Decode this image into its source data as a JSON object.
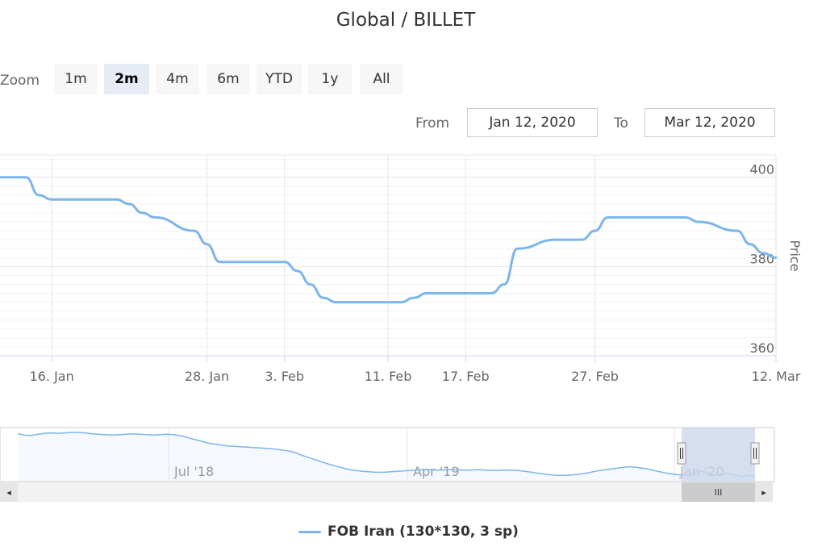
{
  "title": "Global / BILLET",
  "range_selector": {
    "zoom_label": "Zoom",
    "buttons": [
      "1m",
      "2m",
      "4m",
      "6m",
      "YTD",
      "1y",
      "All"
    ],
    "active": "2m",
    "from_label": "From",
    "from_value": "Jan 12, 2020",
    "to_label": "To",
    "to_value": "Mar 12, 2020"
  },
  "colors": {
    "series": "#7cb5ec",
    "navigator_mask": "#ccd6eb",
    "grid": "#e6e6e6"
  },
  "chart_data": {
    "type": "line",
    "title": "Global / BILLET",
    "xlabel": "",
    "ylabel": "Price",
    "x_range": [
      "Jan 12, 2020",
      "Mar 12, 2020"
    ],
    "ylim": [
      360,
      405
    ],
    "y_ticks": [
      360,
      380,
      400
    ],
    "x_ticks": [
      "16. Jan",
      "28. Jan",
      "3. Feb",
      "11. Feb",
      "17. Feb",
      "27. Feb",
      "12. Mar"
    ],
    "grid": true,
    "legend": "bottom-center",
    "series": [
      {
        "name": "FOB Iran (130*130, 3 sp)",
        "x": [
          "2020-01-12",
          "2020-01-13",
          "2020-01-14",
          "2020-01-15",
          "2020-01-16",
          "2020-01-17",
          "2020-01-20",
          "2020-01-21",
          "2020-01-22",
          "2020-01-23",
          "2020-01-24",
          "2020-01-27",
          "2020-01-28",
          "2020-01-29",
          "2020-01-30",
          "2020-01-31",
          "2020-02-03",
          "2020-02-04",
          "2020-02-05",
          "2020-02-06",
          "2020-02-07",
          "2020-02-10",
          "2020-02-11",
          "2020-02-12",
          "2020-02-13",
          "2020-02-14",
          "2020-02-17",
          "2020-02-18",
          "2020-02-19",
          "2020-02-20",
          "2020-02-21",
          "2020-02-24",
          "2020-02-25",
          "2020-02-26",
          "2020-02-27",
          "2020-02-28",
          "2020-03-02",
          "2020-03-03",
          "2020-03-04",
          "2020-03-05",
          "2020-03-06",
          "2020-03-09",
          "2020-03-10",
          "2020-03-11",
          "2020-03-12"
        ],
        "y": [
          400,
          400,
          400,
          396,
          395,
          395,
          395,
          395,
          394,
          392,
          391,
          388,
          385,
          381,
          381,
          381,
          381,
          379,
          376,
          373,
          372,
          372,
          372,
          372,
          373,
          374,
          374,
          374,
          374,
          376,
          384,
          386,
          386,
          386,
          388,
          391,
          391,
          391,
          391,
          391,
          390,
          388,
          385,
          383,
          382
        ]
      }
    ]
  },
  "navigator": {
    "x_labels": [
      "Jul '18",
      "Apr '19",
      "Jan '20"
    ],
    "values": [
      478,
      475,
      474,
      477,
      479,
      480,
      479,
      480,
      481,
      481,
      480,
      478,
      477,
      476,
      475,
      476,
      477,
      478,
      477,
      476,
      475,
      476,
      477,
      476,
      474,
      470,
      466,
      462,
      458,
      455,
      453,
      451,
      450,
      449,
      448,
      447,
      446,
      445,
      444,
      442,
      440,
      436,
      430,
      425,
      420,
      415,
      410,
      406,
      402,
      398,
      396,
      394,
      393,
      392,
      392,
      393,
      394,
      395,
      396,
      397,
      398,
      398,
      397,
      397,
      398,
      398,
      397,
      397,
      398,
      397,
      396,
      396,
      397,
      397,
      396,
      394,
      392,
      390,
      388,
      386,
      385,
      385,
      386,
      388,
      390,
      393,
      396,
      398,
      400,
      402,
      404,
      404,
      402,
      400,
      396,
      393,
      390,
      388,
      386,
      385,
      390,
      395,
      390,
      386,
      388,
      390,
      386,
      383,
      385,
      382
    ]
  },
  "scrollbar": {
    "left_arrow": "◂",
    "right_arrow": "▸",
    "grip": "III",
    "handle_grip": "||"
  }
}
